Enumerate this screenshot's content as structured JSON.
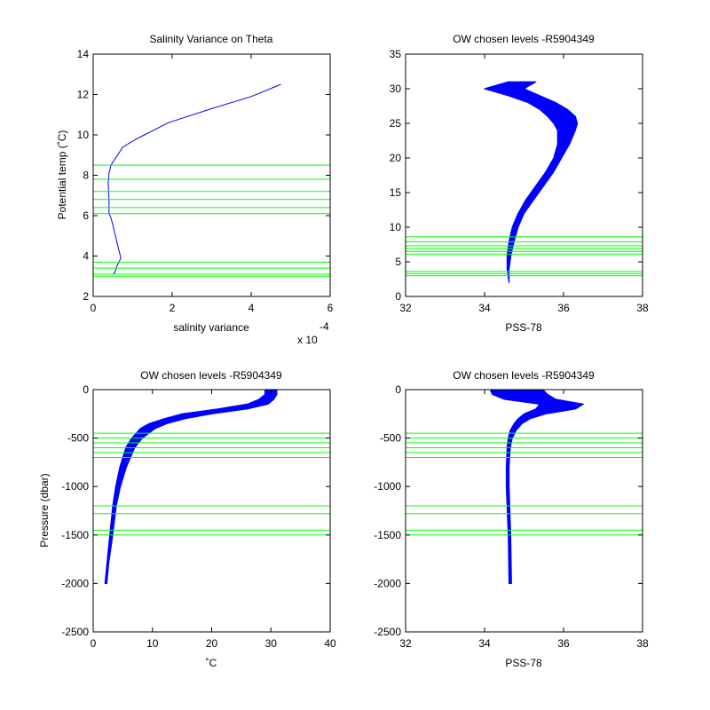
{
  "chart_data": [
    {
      "type": "line",
      "title": "Salinity Variance on Theta",
      "xlabel": "salinity variance",
      "ylabel": "Potential temp (˚C)",
      "x_exponent": "x 10",
      "x_exponent_power": "-4",
      "xlim": [
        0,
        6
      ],
      "ylim": [
        2,
        14
      ],
      "xticks": [
        "0",
        "2",
        "4",
        "6"
      ],
      "yticks": [
        "2",
        "4",
        "6",
        "8",
        "10",
        "12",
        "14"
      ],
      "series": [
        {
          "color": "#0000ff",
          "x": [
            0.5,
            0.55,
            0.6,
            0.7,
            0.65,
            0.6,
            0.55,
            0.5,
            0.45,
            0.4,
            0.4,
            0.38,
            0.4,
            0.45,
            0.75,
            1.1,
            1.9,
            3.0,
            4.0,
            4.75
          ],
          "y": [
            3.1,
            3.2,
            3.5,
            3.9,
            4.3,
            4.7,
            5.1,
            5.5,
            5.9,
            6.1,
            6.8,
            7.6,
            8.1,
            8.5,
            9.4,
            9.8,
            10.6,
            11.3,
            11.9,
            12.5
          ]
        }
      ],
      "hlines": {
        "color": "#00ff00",
        "values": [
          3.0,
          3.1,
          3.4,
          3.7,
          6.1,
          6.4,
          6.8,
          7.2,
          7.8,
          8.5
        ]
      }
    },
    {
      "type": "line",
      "title": "OW chosen levels -R5904349",
      "xlabel": "PSS-78",
      "ylabel": "",
      "xlim": [
        32,
        38
      ],
      "ylim": [
        0,
        35
      ],
      "xticks": [
        "32",
        "34",
        "36",
        "38"
      ],
      "yticks": [
        "0",
        "5",
        "10",
        "15",
        "20",
        "25",
        "30",
        "35"
      ],
      "band": {
        "color": "#0000ff",
        "y": [
          2,
          4,
          6,
          8,
          10,
          12,
          14,
          16,
          18,
          20,
          22,
          24,
          25,
          26,
          27,
          28,
          29,
          30,
          31
        ],
        "x_left": [
          34.62,
          34.57,
          34.57,
          34.62,
          34.7,
          34.85,
          35.05,
          35.3,
          35.55,
          35.75,
          35.85,
          35.85,
          35.75,
          35.6,
          35.4,
          35.1,
          34.6,
          34.0,
          34.6
        ],
        "x_right": [
          34.62,
          34.62,
          34.67,
          34.75,
          34.85,
          35.0,
          35.25,
          35.5,
          35.75,
          35.95,
          36.15,
          36.3,
          36.35,
          36.3,
          36.1,
          35.8,
          35.4,
          35.0,
          35.3
        ]
      },
      "hlines": {
        "color": "#00ff00",
        "values": [
          3.0,
          3.3,
          3.6,
          6.1,
          6.5,
          6.9,
          7.3,
          7.9,
          8.6
        ]
      }
    },
    {
      "type": "line",
      "title": "OW chosen levels -R5904349",
      "xlabel": "˚C",
      "ylabel": "Pressure (dbar)",
      "xlim": [
        0,
        40
      ],
      "ylim": [
        -2500,
        0
      ],
      "xticks": [
        "0",
        "10",
        "20",
        "30",
        "40"
      ],
      "yticks": [
        "-2500",
        "-2000",
        "-1500",
        "-1000",
        "-500",
        "0"
      ],
      "band": {
        "color": "#0000ff",
        "y": [
          -2000,
          -1800,
          -1500,
          -1200,
          -1000,
          -800,
          -600,
          -500,
          -400,
          -350,
          -300,
          -250,
          -200,
          -150,
          -100,
          -50,
          -5
        ],
        "x_left": [
          2.0,
          2.3,
          2.8,
          3.3,
          3.8,
          4.5,
          5.5,
          6.5,
          8.0,
          9.5,
          12.0,
          15.0,
          21.0,
          26.0,
          28.0,
          29.0,
          29.0
        ],
        "x_right": [
          2.3,
          2.6,
          3.3,
          3.9,
          4.6,
          5.6,
          7.0,
          8.3,
          10.5,
          12.5,
          15.5,
          20.0,
          26.0,
          29.5,
          30.5,
          31.0,
          31.0
        ]
      },
      "hlines": {
        "color": "#00ff00",
        "values": [
          -450,
          -500,
          -550,
          -600,
          -650,
          -700,
          -1200,
          -1280,
          -1450,
          -1500
        ]
      }
    },
    {
      "type": "line",
      "title": "OW chosen levels -R5904349",
      "xlabel": "PSS-78",
      "ylabel": "",
      "xlim": [
        32,
        38
      ],
      "ylim": [
        -2500,
        0
      ],
      "xticks": [
        "32",
        "34",
        "36",
        "38"
      ],
      "yticks": [
        "-2500",
        "-2000",
        "-1500",
        "-1000",
        "-500",
        "0"
      ],
      "band": {
        "color": "#0000ff",
        "y": [
          -2000,
          -1500,
          -1000,
          -800,
          -600,
          -500,
          -420,
          -350,
          -300,
          -250,
          -200,
          -150,
          -100,
          -50,
          -10
        ],
        "x_left": [
          34.62,
          34.6,
          34.55,
          34.55,
          34.57,
          34.6,
          34.65,
          34.75,
          34.85,
          35.0,
          35.3,
          35.4,
          34.5,
          34.2,
          34.15
        ],
        "x_right": [
          34.68,
          34.66,
          34.62,
          34.62,
          34.65,
          34.7,
          34.8,
          34.95,
          35.15,
          35.55,
          36.3,
          36.5,
          35.8,
          35.6,
          35.5
        ]
      },
      "hlines": {
        "color": "#00ff00",
        "values": [
          -450,
          -500,
          -550,
          -600,
          -650,
          -700,
          -1200,
          -1280,
          -1450,
          -1500
        ]
      }
    }
  ]
}
